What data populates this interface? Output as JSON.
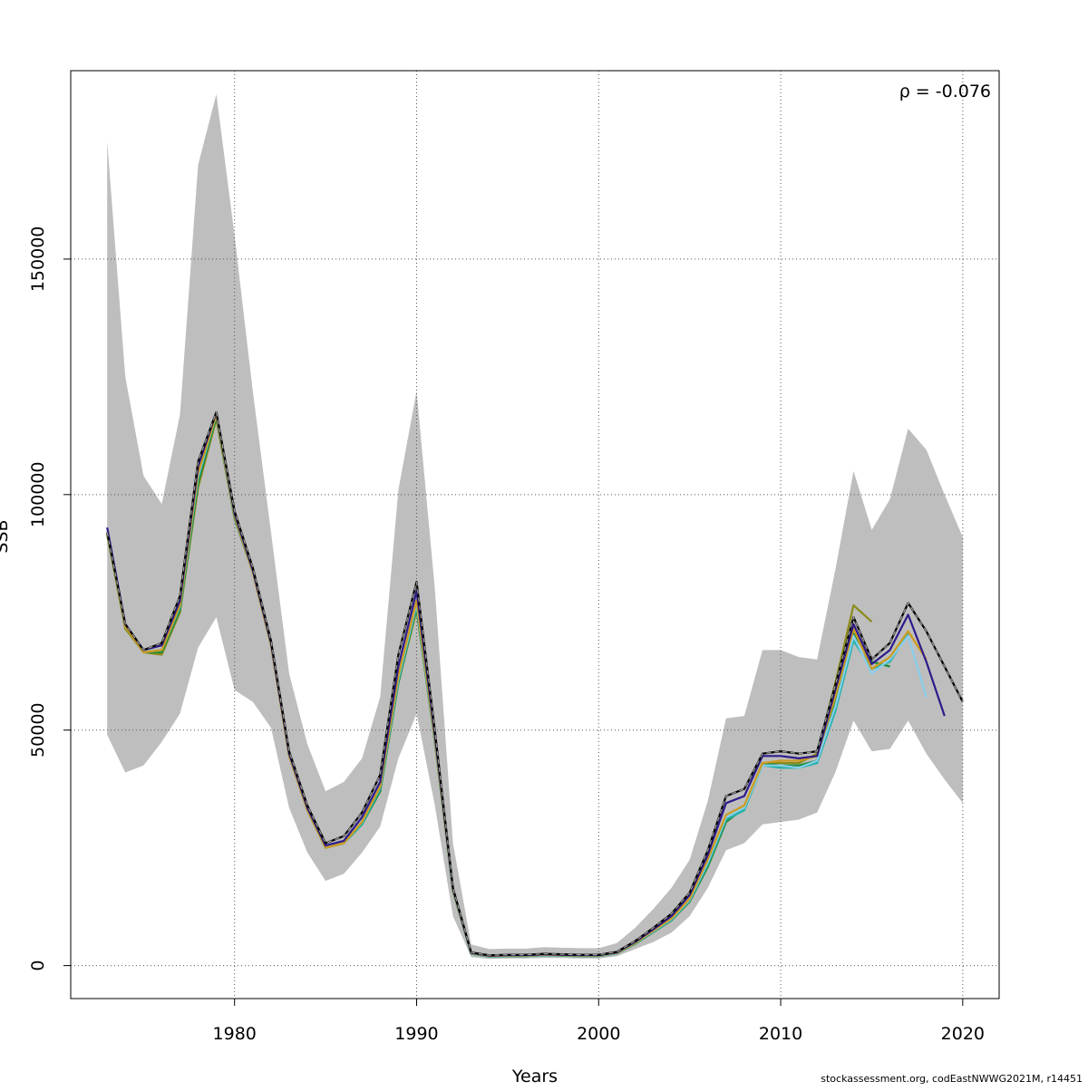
{
  "chart_data": {
    "type": "line",
    "title": "",
    "xlabel": "Years",
    "ylabel": "SSB",
    "xlim": [
      1971,
      2022
    ],
    "ylim": [
      -7000,
      190000
    ],
    "xticks": [
      1980,
      1990,
      2000,
      2010,
      2020
    ],
    "yticks": [
      0,
      50000,
      100000,
      150000
    ],
    "grid": true,
    "annotation": "ρ = -0.076",
    "annotation_position": "top-right",
    "band": {
      "color": "#bebebe",
      "x": [
        1973,
        1974,
        1975,
        1976,
        1977,
        1978,
        1979,
        1980,
        1981,
        1982,
        1983,
        1984,
        1985,
        1986,
        1987,
        1988,
        1989,
        1990,
        1991,
        1992,
        1993,
        1994,
        1995,
        1996,
        1997,
        1998,
        1999,
        2000,
        2001,
        2002,
        2003,
        2004,
        2005,
        2006,
        2007,
        2008,
        2009,
        2010,
        2011,
        2012,
        2013,
        2014,
        2015,
        2016,
        2017,
        2018,
        2019,
        2020
      ],
      "upper": [
        175000,
        125000,
        104000,
        98000,
        117000,
        170000,
        185000,
        155000,
        122000,
        92000,
        62000,
        47000,
        37000,
        39000,
        44000,
        57000,
        101000,
        122000,
        80000,
        26000,
        4500,
        3500,
        3600,
        3600,
        3900,
        3800,
        3700,
        3700,
        4800,
        8000,
        12000,
        16500,
        22500,
        35000,
        52500,
        53000,
        67000,
        67000,
        65500,
        65000,
        84000,
        105000,
        92500,
        99000,
        114000,
        109500,
        100000,
        91000
      ],
      "lower": [
        49000,
        41000,
        42500,
        47500,
        53500,
        67500,
        74000,
        58500,
        56000,
        50500,
        33500,
        24000,
        18000,
        19500,
        24000,
        29500,
        44000,
        53500,
        34000,
        10500,
        1800,
        1400,
        1500,
        1500,
        1600,
        1600,
        1500,
        1500,
        2000,
        3500,
        5000,
        7000,
        10500,
        16500,
        24500,
        26000,
        30000,
        30500,
        31000,
        32500,
        41000,
        52000,
        45500,
        46000,
        52000,
        45000,
        39500,
        34500
      ]
    },
    "series": [
      {
        "color": "#000000",
        "dashed": true,
        "x": [
          1973,
          1974,
          1975,
          1976,
          1977,
          1978,
          1979,
          1980,
          1981,
          1982,
          1983,
          1984,
          1985,
          1986,
          1987,
          1988,
          1989,
          1990,
          1991,
          1992,
          1993,
          1994,
          1995,
          1996,
          1997,
          1998,
          1999,
          2000,
          2001,
          2002,
          2003,
          2004,
          2005,
          2006,
          2007,
          2008,
          2009,
          2010,
          2011,
          2012,
          2013,
          2014,
          2015,
          2016,
          2017,
          2018,
          2019,
          2020
        ],
        "values": [
          92000,
          72500,
          67000,
          68500,
          78500,
          107000,
          117500,
          96500,
          84500,
          69000,
          45500,
          34000,
          26000,
          27500,
          32500,
          40500,
          66000,
          81500,
          50000,
          16500,
          2800,
          2200,
          2300,
          2300,
          2500,
          2400,
          2300,
          2300,
          2900,
          5200,
          8000,
          11000,
          15500,
          24500,
          36000,
          37500,
          45000,
          45500,
          45000,
          45500,
          59500,
          74000,
          65000,
          68500,
          77000,
          71000,
          63500,
          56000
        ]
      },
      {
        "color": "#2e1a8a",
        "dashed": false,
        "x": [
          1973,
          1974,
          1975,
          1976,
          1977,
          1978,
          1979,
          1980,
          1981,
          1982,
          1983,
          1984,
          1985,
          1986,
          1987,
          1988,
          1989,
          1990,
          1991,
          1992,
          1993,
          1994,
          1995,
          1996,
          1997,
          1998,
          1999,
          2000,
          2001,
          2002,
          2003,
          2004,
          2005,
          2006,
          2007,
          2008,
          2009,
          2010,
          2011,
          2012,
          2013,
          2014,
          2015,
          2016,
          2017,
          2018,
          2019
        ],
        "values": [
          93000,
          72500,
          67000,
          68000,
          77500,
          106000,
          117500,
          96000,
          84000,
          68500,
          45000,
          33500,
          25500,
          26500,
          31500,
          39000,
          63500,
          79500,
          49000,
          16300,
          2700,
          2100,
          2200,
          2200,
          2400,
          2300,
          2200,
          2200,
          2800,
          5000,
          7700,
          10500,
          15000,
          23500,
          34500,
          36000,
          44500,
          44500,
          44000,
          44500,
          58500,
          72500,
          64000,
          67000,
          74500,
          64500,
          53000
        ]
      },
      {
        "color": "#cd9b1d",
        "dashed": false,
        "x": [
          1973,
          1974,
          1975,
          1976,
          1977,
          1978,
          1979,
          1980,
          1981,
          1982,
          1983,
          1984,
          1985,
          1986,
          1987,
          1988,
          1989,
          1990,
          1991,
          1992,
          1993,
          1994,
          1995,
          1996,
          1997,
          1998,
          1999,
          2000,
          2001,
          2002,
          2003,
          2004,
          2005,
          2006,
          2007,
          2008,
          2009,
          2010,
          2011,
          2012,
          2013,
          2014,
          2015,
          2016,
          2017,
          2018
        ],
        "values": [
          92000,
          72000,
          66500,
          67000,
          76500,
          104500,
          117000,
          95500,
          83500,
          68000,
          44500,
          33000,
          25000,
          26000,
          30500,
          38000,
          61500,
          77500,
          48000,
          16000,
          2600,
          2000,
          2100,
          2100,
          2300,
          2200,
          2100,
          2100,
          2700,
          4800,
          7400,
          10000,
          14200,
          22500,
          32000,
          34000,
          43000,
          43500,
          43500,
          44500,
          57000,
          71500,
          63000,
          65500,
          71000,
          65000
        ]
      },
      {
        "color": "#87ceeb",
        "dashed": false,
        "x": [
          1973,
          1974,
          1975,
          1976,
          1977,
          1978,
          1979,
          1980,
          1981,
          1982,
          1983,
          1984,
          1985,
          1986,
          1987,
          1988,
          1989,
          1990,
          1991,
          1992,
          1993,
          1994,
          1995,
          1996,
          1997,
          1998,
          1999,
          2000,
          2001,
          2002,
          2003,
          2004,
          2005,
          2006,
          2007,
          2008,
          2009,
          2010,
          2011,
          2012,
          2013,
          2014,
          2015,
          2016,
          2017,
          2018
        ],
        "values": [
          92000,
          72000,
          66500,
          67000,
          76500,
          104000,
          117000,
          95500,
          83500,
          68000,
          44500,
          33000,
          25000,
          26000,
          30500,
          38000,
          61000,
          77000,
          48000,
          16000,
          2600,
          2000,
          2100,
          2100,
          2300,
          2200,
          2100,
          2100,
          2700,
          4800,
          7300,
          9900,
          14000,
          22000,
          31500,
          33500,
          42500,
          42500,
          42000,
          43500,
          55000,
          70000,
          62000,
          65000,
          70000,
          57000
        ]
      },
      {
        "color": "#20b2aa",
        "dashed": false,
        "x": [
          1973,
          1974,
          1975,
          1976,
          1977,
          1978,
          1979,
          1980,
          1981,
          1982,
          1983,
          1984,
          1985,
          1986,
          1987,
          1988,
          1989,
          1990,
          1991,
          1992,
          1993,
          1994,
          1995,
          1996,
          1997,
          1998,
          1999,
          2000,
          2001,
          2002,
          2003,
          2004,
          2005,
          2006,
          2007,
          2008,
          2009,
          2010,
          2011,
          2012,
          2013,
          2014,
          2015,
          2016,
          2017
        ],
        "values": [
          92000,
          72000,
          66500,
          67000,
          76000,
          103500,
          117000,
          95500,
          83500,
          68000,
          44500,
          33000,
          25000,
          26000,
          30000,
          37500,
          60500,
          76500,
          47500,
          15800,
          2500,
          1900,
          2000,
          2000,
          2200,
          2100,
          2000,
          2000,
          2600,
          4700,
          7200,
          9700,
          13800,
          21500,
          31000,
          33000,
          42500,
          42000,
          42000,
          43000,
          54000,
          69000,
          63000,
          64500,
          70500
        ]
      },
      {
        "color": "#1e8b3a",
        "dashed": false,
        "x": [
          1973,
          1974,
          1975,
          1976,
          1977,
          1978,
          1979,
          1980,
          1981,
          1982,
          1983,
          1984,
          1985,
          1986,
          1987,
          1988,
          1989,
          1990,
          1991,
          1992,
          1993,
          1994,
          1995,
          1996,
          1997,
          1998,
          1999,
          2000,
          2001,
          2002,
          2003,
          2004,
          2005,
          2006,
          2007,
          2008,
          2009,
          2010,
          2011,
          2012,
          2013,
          2014,
          2015,
          2016
        ],
        "values": [
          92000,
          72000,
          66500,
          66500,
          75500,
          102500,
          116500,
          95000,
          83500,
          68000,
          44500,
          33000,
          25000,
          26000,
          30000,
          37000,
          60000,
          76000,
          47500,
          15800,
          2500,
          1900,
          2000,
          2000,
          2200,
          2100,
          2000,
          2000,
          2600,
          4600,
          7100,
          9600,
          13600,
          21000,
          30500,
          33500,
          43000,
          42500,
          42500,
          43500,
          56500,
          70500,
          64500,
          63500
        ]
      },
      {
        "color": "#8b8b1a",
        "dashed": false,
        "x": [
          1973,
          1974,
          1975,
          1976,
          1977,
          1978,
          1979,
          1980,
          1981,
          1982,
          1983,
          1984,
          1985,
          1986,
          1987,
          1988,
          1989,
          1990,
          1991,
          1992,
          1993,
          1994,
          1995,
          1996,
          1997,
          1998,
          1999,
          2000,
          2001,
          2002,
          2003,
          2004,
          2005,
          2006,
          2007,
          2008,
          2009,
          2010,
          2011,
          2012,
          2013,
          2014,
          2015
        ],
        "values": [
          91500,
          71500,
          66500,
          66000,
          75000,
          101500,
          116000,
          95000,
          83500,
          68000,
          44500,
          33000,
          25000,
          26000,
          30000,
          37000,
          60000,
          75500,
          47500,
          15800,
          2500,
          1900,
          2000,
          2000,
          2200,
          2100,
          2000,
          2000,
          2600,
          4600,
          7100,
          9600,
          13600,
          21000,
          30500,
          33500,
          43000,
          43000,
          43000,
          45000,
          60000,
          76500,
          73000
        ]
      }
    ]
  },
  "footer": {
    "credit": "stockassessment.org, codEastNWWG2021M, r14451"
  }
}
